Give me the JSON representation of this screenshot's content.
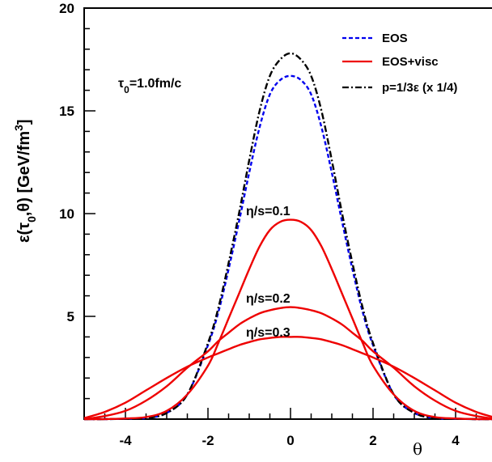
{
  "chart_data": {
    "type": "line",
    "xlabel": "θ",
    "ylabel": "ε(τ",
    "ylabel_sub0": "0",
    "ylabel_mid": ",θ)   [GeV/fm",
    "ylabel_sup": "3",
    "ylabel_end": "]",
    "xlim": [
      -5,
      5
    ],
    "ylim": [
      0,
      20
    ],
    "x_ticks": [
      -4,
      -2,
      0,
      2,
      4
    ],
    "x_tick_labels": [
      "-4",
      "-2",
      "0",
      "2",
      "4"
    ],
    "y_ticks": [
      5,
      10,
      15,
      20
    ],
    "y_tick_labels": [
      "5",
      "10",
      "15",
      "20"
    ],
    "annotations": {
      "tau0_main": "τ",
      "tau0_sub": "0",
      "tau0_rest": "=1.0fm/c",
      "eta1": "η/s=0.1",
      "eta2": "η/s=0.2",
      "eta3": "η/s=0.3"
    },
    "legend": [
      {
        "label": "EOS",
        "color": "#0000ee",
        "dash": "dashed"
      },
      {
        "label": "EOS+visc",
        "color": "#ee0000",
        "dash": "solid"
      },
      {
        "label": "p=1/3ε (x 1/4)",
        "color": "#000000",
        "dash": "dashdot"
      }
    ],
    "legend_position": "top-right",
    "grid": false,
    "series": [
      {
        "name": "EOS",
        "color": "#0000ee",
        "style": "dashed",
        "x": [
          -5,
          -4.5,
          -4,
          -3.5,
          -3,
          -2.5,
          -2,
          -1.75,
          -1.5,
          -1.25,
          -1,
          -0.75,
          -0.5,
          -0.25,
          0,
          0.25,
          0.5,
          0.75,
          1,
          1.25,
          1.5,
          1.75,
          2,
          2.5,
          3,
          3.5,
          4,
          4.5,
          5
        ],
        "y": [
          0,
          0,
          0.02,
          0.05,
          0.3,
          1.2,
          3.6,
          5.2,
          7.3,
          9.6,
          12.0,
          14.2,
          15.8,
          16.5,
          16.7,
          16.5,
          15.8,
          14.2,
          12.0,
          9.6,
          7.3,
          5.2,
          3.6,
          1.2,
          0.3,
          0.05,
          0.02,
          0,
          0
        ]
      },
      {
        "name": "p=1/3ε (x 1/4)",
        "color": "#000000",
        "style": "dashdot",
        "x": [
          -5,
          -4.5,
          -4,
          -3.5,
          -3,
          -2.5,
          -2,
          -1.75,
          -1.5,
          -1.25,
          -1,
          -0.75,
          -0.5,
          -0.25,
          0,
          0.25,
          0.5,
          0.75,
          1,
          1.25,
          1.5,
          1.75,
          2,
          2.5,
          3,
          3.5,
          4,
          4.5,
          5
        ],
        "y": [
          0,
          0,
          0.02,
          0.05,
          0.3,
          1.2,
          3.7,
          5.4,
          7.6,
          10.0,
          12.6,
          15.0,
          16.7,
          17.5,
          17.8,
          17.5,
          16.7,
          15.0,
          12.6,
          10.0,
          7.6,
          5.4,
          3.7,
          1.2,
          0.3,
          0.05,
          0.02,
          0,
          0
        ]
      },
      {
        "name": "η/s=0.1",
        "color": "#ee0000",
        "style": "solid",
        "x": [
          -5,
          -4.5,
          -4,
          -3.5,
          -3,
          -2.5,
          -2,
          -1.75,
          -1.5,
          -1.25,
          -1,
          -0.75,
          -0.5,
          -0.25,
          0,
          0.25,
          0.5,
          0.75,
          1,
          1.25,
          1.5,
          1.75,
          2,
          2.5,
          3,
          3.5,
          4,
          4.5,
          5
        ],
        "y": [
          0,
          0,
          0.03,
          0.1,
          0.4,
          1.2,
          2.6,
          3.7,
          4.9,
          6.1,
          7.3,
          8.4,
          9.2,
          9.6,
          9.7,
          9.6,
          9.2,
          8.4,
          7.3,
          6.1,
          4.9,
          3.7,
          2.6,
          1.2,
          0.4,
          0.1,
          0.03,
          0,
          0
        ]
      },
      {
        "name": "η/s=0.2",
        "color": "#ee0000",
        "style": "solid",
        "x": [
          -5,
          -4.5,
          -4,
          -3.5,
          -3,
          -2.5,
          -2,
          -1.75,
          -1.5,
          -1.25,
          -1,
          -0.75,
          -0.5,
          -0.25,
          0,
          0.25,
          0.5,
          0.75,
          1,
          1.25,
          1.5,
          1.75,
          2,
          2.5,
          3,
          3.5,
          4,
          4.5,
          5
        ],
        "y": [
          0,
          0.15,
          0.4,
          0.9,
          1.6,
          2.5,
          3.3,
          3.8,
          4.2,
          4.6,
          4.9,
          5.15,
          5.3,
          5.4,
          5.45,
          5.4,
          5.3,
          5.15,
          4.9,
          4.6,
          4.2,
          3.8,
          3.3,
          2.5,
          1.6,
          0.9,
          0.4,
          0.15,
          0
        ]
      },
      {
        "name": "η/s=0.3",
        "color": "#ee0000",
        "style": "solid",
        "x": [
          -5,
          -4.5,
          -4,
          -3.5,
          -3,
          -2.5,
          -2,
          -1.75,
          -1.5,
          -1.25,
          -1,
          -0.75,
          -0.5,
          -0.25,
          0,
          0.25,
          0.5,
          0.75,
          1,
          1.25,
          1.5,
          1.75,
          2,
          2.5,
          3,
          3.5,
          4,
          4.5,
          5
        ],
        "y": [
          0.05,
          0.35,
          0.8,
          1.4,
          2.0,
          2.55,
          3.0,
          3.2,
          3.4,
          3.6,
          3.75,
          3.88,
          3.95,
          4.0,
          4.0,
          4.0,
          3.95,
          3.88,
          3.75,
          3.6,
          3.4,
          3.2,
          3.0,
          2.55,
          2.0,
          1.4,
          0.8,
          0.35,
          0.05
        ]
      }
    ]
  }
}
